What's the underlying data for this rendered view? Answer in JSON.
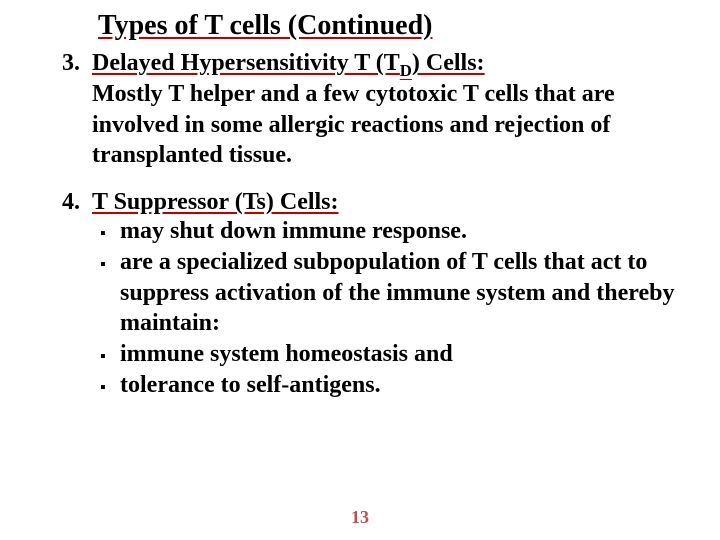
{
  "colors": {
    "underline": "#c00000",
    "page_num": "#c0504d",
    "text": "#000000",
    "background": "#ffffff"
  },
  "typography": {
    "title_fontsize": 28,
    "body_fontsize": 24,
    "pagenum_fontsize": 18,
    "font_family": "Times New Roman",
    "weight": "bold"
  },
  "title": "Types of T cells (Continued)",
  "item3": {
    "num": "3.",
    "heading_pre": "Delayed Hypersensitivity T (T",
    "heading_sub": "D",
    "heading_post": ") Cells:",
    "desc": "Mostly T helper and a few cytotoxic T cells that are involved in some allergic reactions and rejection of transplanted tissue."
  },
  "item4": {
    "num": "4.",
    "heading": "T Suppressor (Ts) Cells:",
    "bullets": {
      "b1": "may shut down immune response.",
      "b2": "are a specialized subpopulation of T cells that act to suppress activation of the immune system and thereby maintain:",
      "b3": "immune system homeostasis and",
      "b4": "tolerance to self-antigens."
    }
  },
  "page_number": "13"
}
